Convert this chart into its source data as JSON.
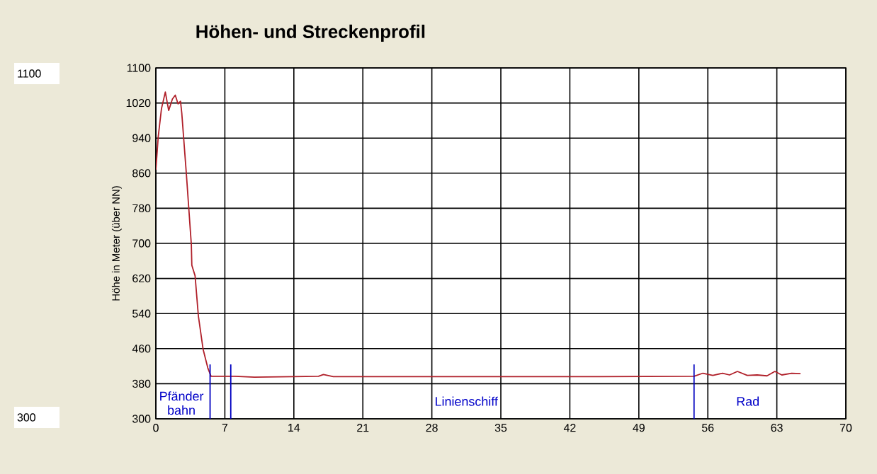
{
  "chart_data": {
    "type": "line",
    "title": "Höhen- und Streckenprofil",
    "ylabel": "Höhe in Meter (über NN)",
    "xlim": [
      0,
      70
    ],
    "xticks": [
      0,
      7,
      14,
      21,
      28,
      35,
      42,
      49,
      56,
      63,
      70
    ],
    "ylim": [
      300,
      1100
    ],
    "yticks": [
      300,
      380,
      460,
      540,
      620,
      700,
      780,
      860,
      940,
      1020,
      1100
    ],
    "grid": true,
    "series": [
      {
        "color": "#b0202a",
        "x": [
          0,
          0.24,
          0.57,
          0.96,
          1.3,
          1.68,
          1.97,
          2.25,
          2.5,
          2.63,
          3.1,
          3.6,
          3.65,
          3.98,
          4.31,
          4.79,
          5.27,
          5.6,
          8.0,
          10,
          16.5,
          17,
          18,
          25,
          35,
          45,
          54.6,
          55.5,
          56.5,
          57.5,
          58.2,
          59,
          60,
          61,
          62,
          62.8,
          63.5,
          64.5,
          65.4
        ],
        "values": [
          868,
          943,
          1007,
          1045,
          1003,
          1029,
          1038,
          1018,
          1024,
          997,
          857,
          697,
          650,
          626,
          535,
          459,
          416,
          397,
          397,
          395,
          397,
          401,
          396,
          396,
          396,
          396,
          397,
          404,
          399,
          404,
          400,
          408,
          399,
          400,
          398,
          408,
          400,
          404,
          403
        ]
      }
    ],
    "ref_lines": [
      {
        "axis": "x",
        "value": 5.5,
        "color": "#0000c0"
      },
      {
        "axis": "x",
        "value": 7.6,
        "color": "#0000c0"
      },
      {
        "axis": "x",
        "value": 54.6,
        "color": "#0000c0"
      }
    ],
    "annotations": [
      "Pfänder bahn",
      "Linienschiff",
      "Rad",
      "1100",
      "300"
    ]
  }
}
